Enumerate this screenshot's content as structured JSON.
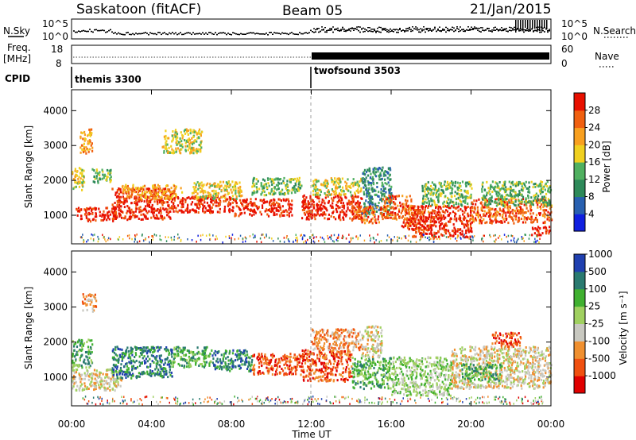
{
  "header": {
    "station": "Saskatoon (fitACF)",
    "beam": "Beam 05",
    "date": "21/Jan/2015"
  },
  "top_panel": {
    "left_label": "N.Sky",
    "left_ticks": [
      "10^5",
      "10^0"
    ],
    "right_ticks": [
      "10^5",
      "10^0"
    ],
    "right_label": "N.Search"
  },
  "freq_panel": {
    "left_label_1": "Freq.",
    "left_label_2": "[MHz]",
    "left_ticks": [
      "18",
      "8"
    ],
    "right_ticks": [
      "60",
      "0"
    ],
    "right_label": "Nave"
  },
  "cpid": {
    "label": "CPID",
    "modes": [
      {
        "name": "themis 3300",
        "start_hour": 0,
        "end_hour": 12
      },
      {
        "name": "twofsound 3503",
        "start_hour": 12,
        "end_hour": 24
      }
    ]
  },
  "axes": {
    "ylabel": "Slant Range [km]",
    "xlabel": "Time UT",
    "yticks": [
      "1000",
      "2000",
      "3000",
      "4000"
    ],
    "xticks": [
      "00:00",
      "04:00",
      "08:00",
      "12:00",
      "16:00",
      "20:00",
      "00:00"
    ]
  },
  "colors": {
    "power": [
      "#1020e0",
      "#2860b0",
      "#2e8a5a",
      "#50b060",
      "#f0d020",
      "#f8a020",
      "#f06010",
      "#e81000"
    ],
    "velocity": [
      "#e00000",
      "#f05010",
      "#f09030",
      "#c8c8c0",
      "#a0d060",
      "#40b030",
      "#2a7a70",
      "#2040b0"
    ]
  },
  "chart_data": [
    {
      "type": "heatmap",
      "name": "power",
      "xlabel": "Time UT",
      "ylabel": "Slant Range [km]",
      "xlim": [
        0,
        24
      ],
      "ylim": [
        180,
        4600
      ],
      "colorbar": {
        "label": "Power [dB]",
        "ticks": [
          "4",
          "8",
          "12",
          "16",
          "20",
          "24",
          "28"
        ],
        "range": [
          0,
          32
        ]
      },
      "regions": [
        {
          "t0": 0.0,
          "t1": 0.6,
          "r0": 1750,
          "r1": 2450,
          "level": 4
        },
        {
          "t0": 0.2,
          "t1": 2.2,
          "r0": 850,
          "r1": 1250,
          "level": 7
        },
        {
          "t0": 0.4,
          "t1": 1.0,
          "r0": 2800,
          "r1": 3500,
          "level": 5
        },
        {
          "t0": 1.0,
          "t1": 2.0,
          "r0": 1950,
          "r1": 2350,
          "level": 3
        },
        {
          "t0": 2.0,
          "t1": 5.0,
          "r0": 900,
          "r1": 1800,
          "level": 7
        },
        {
          "t0": 2.5,
          "t1": 5.5,
          "r0": 1500,
          "r1": 1900,
          "level": 5
        },
        {
          "t0": 4.5,
          "t1": 6.5,
          "r0": 2800,
          "r1": 3500,
          "level": 4
        },
        {
          "t0": 5.0,
          "t1": 8.0,
          "r0": 1100,
          "r1": 1600,
          "level": 7
        },
        {
          "t0": 6.0,
          "t1": 8.5,
          "r0": 1500,
          "r1": 2000,
          "level": 4
        },
        {
          "t0": 8.0,
          "t1": 11.0,
          "r0": 1000,
          "r1": 1500,
          "level": 7
        },
        {
          "t0": 9.0,
          "t1": 11.5,
          "r0": 1600,
          "r1": 2100,
          "level": 3
        },
        {
          "t0": 11.5,
          "t1": 14.5,
          "r0": 900,
          "r1": 1600,
          "level": 7
        },
        {
          "t0": 12.0,
          "t1": 14.5,
          "r0": 1600,
          "r1": 2100,
          "level": 4
        },
        {
          "t0": 14.5,
          "t1": 16.0,
          "r0": 1000,
          "r1": 2400,
          "level": 2
        },
        {
          "t0": 14.0,
          "t1": 15.5,
          "r0": 800,
          "r1": 1300,
          "level": 6
        },
        {
          "t0": 15.5,
          "t1": 17.0,
          "r0": 900,
          "r1": 1600,
          "level": 6
        },
        {
          "t0": 16.5,
          "t1": 18.0,
          "r0": 600,
          "r1": 1300,
          "level": 6
        },
        {
          "t0": 17.0,
          "t1": 20.0,
          "r0": 400,
          "r1": 1300,
          "level": 7
        },
        {
          "t0": 17.5,
          "t1": 20.0,
          "r0": 1300,
          "r1": 2000,
          "level": 3
        },
        {
          "t0": 20.0,
          "t1": 24.0,
          "r0": 800,
          "r1": 1500,
          "level": 6
        },
        {
          "t0": 20.5,
          "t1": 24.0,
          "r0": 1300,
          "r1": 2000,
          "level": 3
        },
        {
          "t0": 23.0,
          "t1": 24.0,
          "r0": 450,
          "r1": 700,
          "level": 7
        }
      ]
    },
    {
      "type": "heatmap",
      "name": "velocity",
      "xlabel": "Time UT",
      "ylabel": "Slant Range [km]",
      "xlim": [
        0,
        24
      ],
      "ylim": [
        180,
        4600
      ],
      "colorbar": {
        "label": "Velocity [m s⁻¹]",
        "ticks": [
          "-1000",
          "-500",
          "-100",
          "-25",
          "25",
          "100",
          "500",
          "1000"
        ],
        "range": [
          -1200,
          1200
        ]
      },
      "regions": [
        {
          "t0": 0.0,
          "t1": 2.5,
          "r0": 650,
          "r1": 1250,
          "level": 3
        },
        {
          "t0": 0.0,
          "t1": 1.0,
          "r0": 1300,
          "r1": 2100,
          "level": 5
        },
        {
          "t0": 0.5,
          "t1": 1.2,
          "r0": 2900,
          "r1": 3400,
          "level": 2
        },
        {
          "t0": 2.0,
          "t1": 5.0,
          "r0": 1000,
          "r1": 1900,
          "level": 6
        },
        {
          "t0": 5.0,
          "t1": 7.0,
          "r0": 1300,
          "r1": 1900,
          "level": 5
        },
        {
          "t0": 7.0,
          "t1": 9.0,
          "r0": 1200,
          "r1": 1800,
          "level": 6
        },
        {
          "t0": 9.0,
          "t1": 11.5,
          "r0": 1100,
          "r1": 1700,
          "level": 1
        },
        {
          "t0": 11.5,
          "t1": 14.0,
          "r0": 900,
          "r1": 1800,
          "level": 1
        },
        {
          "t0": 12.0,
          "t1": 14.5,
          "r0": 1800,
          "r1": 2400,
          "level": 2
        },
        {
          "t0": 14.0,
          "t1": 16.0,
          "r0": 700,
          "r1": 1600,
          "level": 5
        },
        {
          "t0": 14.5,
          "t1": 15.5,
          "r0": 1600,
          "r1": 2500,
          "level": 3
        },
        {
          "t0": 16.0,
          "t1": 19.0,
          "r0": 500,
          "r1": 1600,
          "level": 4
        },
        {
          "t0": 19.0,
          "t1": 24.0,
          "r0": 700,
          "r1": 1900,
          "level": 3
        },
        {
          "t0": 19.5,
          "t1": 21.5,
          "r0": 900,
          "r1": 1400,
          "level": 5
        },
        {
          "t0": 21.0,
          "t1": 22.5,
          "r0": 1900,
          "r1": 2300,
          "level": 1
        }
      ]
    }
  ]
}
